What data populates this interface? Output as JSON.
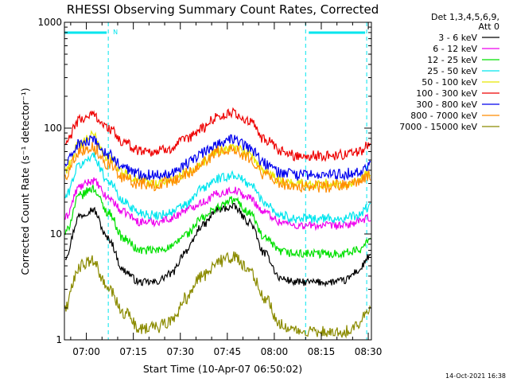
{
  "chart_data": {
    "type": "line",
    "title": "RHESSI Observing Summary Count Rates, Corrected",
    "xlabel": "Start Time (10-Apr-07 06:50:02)",
    "ylabel": "Corrected Count Rate (s⁻¹ detector⁻¹)",
    "yscale": "log",
    "xlim_minutes": [
      -7,
      91
    ],
    "ylim": [
      1,
      1000
    ],
    "x_ticks": [
      {
        "label": "07:00",
        "minutes": 0
      },
      {
        "label": "07:15",
        "minutes": 15
      },
      {
        "label": "07:30",
        "minutes": 30
      },
      {
        "label": "07:45",
        "minutes": 45
      },
      {
        "label": "08:00",
        "minutes": 60
      },
      {
        "label": "08:15",
        "minutes": 75
      },
      {
        "label": "08:30",
        "minutes": 90
      }
    ],
    "y_ticks": [
      {
        "label": "1",
        "value": 1
      },
      {
        "label": "10",
        "value": 10
      },
      {
        "label": "100",
        "value": 100
      },
      {
        "label": "1000",
        "value": 1000
      }
    ],
    "legend_header": [
      "Det 1,3,4,5,6,9,",
      "Att 0"
    ],
    "legend_position": "right",
    "night_intervals_minutes": [
      [
        -7,
        7
      ],
      [
        70,
        89.5
      ]
    ],
    "flag_segments_minutes": [
      [
        -9,
        6.5
      ],
      [
        71,
        89
      ]
    ],
    "flag_label": "N",
    "x_sample_minutes": [
      -7,
      -2,
      2,
      7,
      12,
      17,
      22,
      27,
      32,
      37,
      42,
      47,
      52,
      57,
      62,
      67,
      72,
      77,
      82,
      87,
      90
    ],
    "series": [
      {
        "name": "3 - 6 keV",
        "color": "#000000",
        "values": [
          6,
          15,
          17,
          9,
          4.5,
          3.5,
          3.5,
          4.2,
          7,
          12,
          17,
          18,
          13,
          6.5,
          3.8,
          3.5,
          3.5,
          3.5,
          3.6,
          4.5,
          6
        ]
      },
      {
        "name": "6 - 12 keV",
        "color": "#ee00ee",
        "values": [
          14,
          28,
          32,
          22,
          16,
          13,
          13,
          14,
          17,
          20,
          24,
          26,
          22,
          16,
          13,
          12,
          12,
          12,
          12,
          13,
          14
        ]
      },
      {
        "name": "12 - 25 keV",
        "color": "#00e000",
        "values": [
          10,
          23,
          27,
          16,
          9,
          7,
          7,
          7.5,
          10,
          14,
          18,
          21,
          16,
          9,
          6.8,
          6.5,
          6.5,
          6.5,
          6.6,
          7,
          9
        ]
      },
      {
        "name": "25 - 50 keV",
        "color": "#00e5ee",
        "values": [
          22,
          45,
          55,
          32,
          20,
          16,
          15,
          16,
          19,
          27,
          33,
          36,
          30,
          20,
          15,
          14,
          14,
          14,
          14,
          15,
          18
        ]
      },
      {
        "name": "50 - 100 keV",
        "color": "#e8e800",
        "values": [
          40,
          70,
          85,
          52,
          38,
          32,
          30,
          32,
          38,
          48,
          62,
          66,
          56,
          40,
          32,
          30,
          30,
          30,
          30,
          32,
          38
        ]
      },
      {
        "name": "100 - 300 keV",
        "color": "#ee0000",
        "values": [
          70,
          120,
          135,
          100,
          72,
          62,
          60,
          65,
          78,
          100,
          130,
          138,
          115,
          78,
          60,
          55,
          55,
          55,
          56,
          60,
          70
        ]
      },
      {
        "name": "300 - 800 keV",
        "color": "#0000ee",
        "values": [
          45,
          72,
          75,
          56,
          42,
          37,
          36,
          38,
          46,
          58,
          72,
          78,
          66,
          46,
          38,
          36,
          36,
          36,
          37,
          39,
          44
        ]
      },
      {
        "name": "800 - 7000 keV",
        "color": "#ff8c00",
        "values": [
          35,
          62,
          66,
          46,
          33,
          30,
          29,
          31,
          37,
          47,
          60,
          64,
          53,
          36,
          30,
          28,
          28,
          28,
          29,
          31,
          35
        ]
      },
      {
        "name": "7000 - 15000 keV",
        "color": "#8b8b00",
        "values": [
          2,
          5,
          5.5,
          3,
          1.8,
          1.3,
          1.3,
          1.5,
          2.5,
          4,
          5.5,
          6,
          4.5,
          2.5,
          1.4,
          1.2,
          1.2,
          1.2,
          1.2,
          1.4,
          2
        ]
      }
    ]
  },
  "footer": {
    "timestamp": "14-Oct-2021 16:38"
  },
  "colors": {
    "background": "#ffffff",
    "axes": "#000000",
    "night_marker": "#00e5ee"
  }
}
